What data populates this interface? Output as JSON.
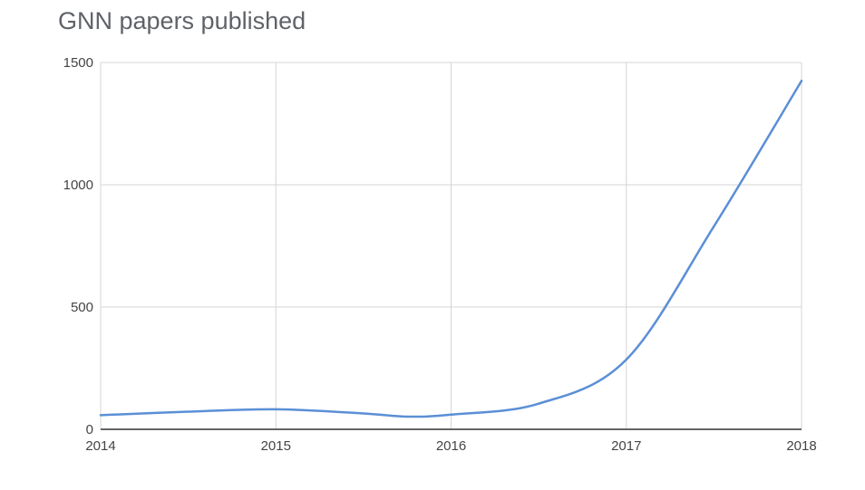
{
  "chart_data": {
    "type": "line",
    "title": "GNN papers published",
    "xlabel": "",
    "ylabel": "",
    "x": [
      2014,
      2014.5,
      2015,
      2015.5,
      2015.75,
      2016,
      2016.5,
      2017,
      2017.5,
      2018
    ],
    "series": [
      {
        "values": [
          58,
          72,
          82,
          65,
          52,
          60,
          105,
          285,
          830,
          1425
        ]
      }
    ],
    "xticks": [
      "2014",
      "2015",
      "2016",
      "2017",
      "2018"
    ],
    "yticks": [
      "0",
      "500",
      "1000",
      "1500"
    ],
    "xlim": [
      2014,
      2018
    ],
    "ylim": [
      0,
      1500
    ],
    "grid": true,
    "line_color": "#5b8fd6"
  }
}
